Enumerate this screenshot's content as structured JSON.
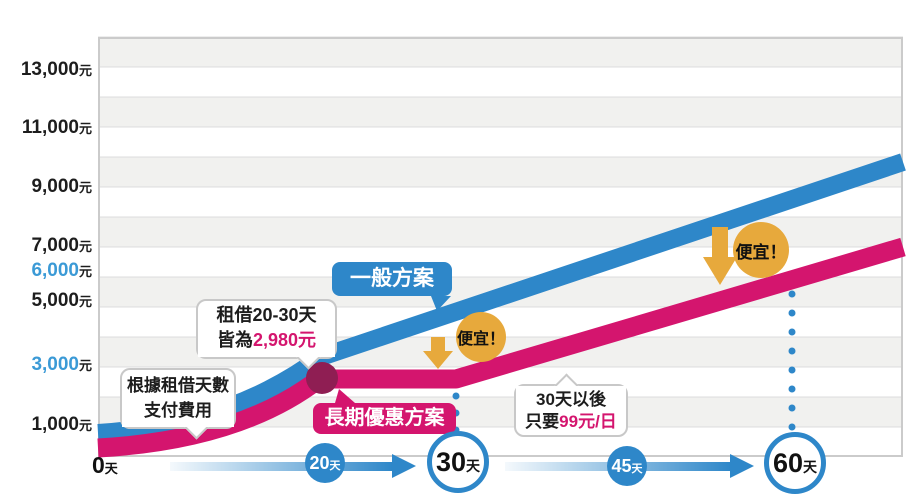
{
  "colors": {
    "blue": "#2e87c9",
    "blue_axis_label": "#3b9ad6",
    "pink": "#d4156e",
    "junction_dot": "#8f1e53",
    "orange": "#e7a93c",
    "band_gray": "#f1f1ef",
    "grid_line": "#dcdcdc",
    "text": "#1d1d1d"
  },
  "chart_data": {
    "type": "line",
    "title": "",
    "x_axis": {
      "unit": "天",
      "ticks": [
        0,
        20,
        30,
        45,
        60
      ],
      "tick_labels": [
        "0天",
        "20天",
        "30天",
        "45天",
        "60天"
      ]
    },
    "y_axis": {
      "unit": "元",
      "tick_labels": [
        "13,000元",
        "11,000元",
        "9,000元",
        "7,000元",
        "6,000元",
        "5,000元",
        "3,000元",
        "1,000元"
      ],
      "highlighted_tick_labels": [
        "6,000元",
        "3,000元"
      ],
      "range": [
        0,
        14000
      ],
      "gridline_every_yuan": 1000,
      "banded_background": true
    },
    "series": [
      {
        "name": "一般方案",
        "color": "#2e87c9",
        "points": [
          {
            "day": 0,
            "yuan": 600
          },
          {
            "day": 20,
            "yuan": 3300
          },
          {
            "day": 30,
            "yuan": 4850
          },
          {
            "day": 60,
            "yuan": 8400
          }
        ],
        "values_estimated_from_pixels": true
      },
      {
        "name": "長期優惠方案",
        "color": "#d4156e",
        "points": [
          {
            "day": 0,
            "yuan": 300
          },
          {
            "day": 20,
            "yuan": 2980
          },
          {
            "day": 30,
            "yuan": 2980
          },
          {
            "day": 60,
            "yuan": 5950
          }
        ],
        "pricing_notes": [
          "租借20-30天皆為2,980元",
          "30天以後只要99元/日"
        ]
      }
    ],
    "annotations": [
      "根據租借天數支付費用",
      "租借20-30天皆為2,980元",
      "30天以後只要99元/日",
      "便宜！",
      "便宜！"
    ],
    "legend_position": "inline-badges"
  },
  "y_labels": [
    {
      "num": "13,000",
      "unit": "元"
    },
    {
      "num": "11,000",
      "unit": "元"
    },
    {
      "num": "9,000",
      "unit": "元"
    },
    {
      "num": "7,000",
      "unit": "元"
    },
    {
      "num": "6,000",
      "unit": "元"
    },
    {
      "num": "5,000",
      "unit": "元"
    },
    {
      "num": "3,000",
      "unit": "元"
    },
    {
      "num": "1,000",
      "unit": "元"
    }
  ],
  "badges": {
    "general": "一般方案",
    "longterm": "長期優惠方案"
  },
  "bubbles": {
    "base": {
      "line1": "根據租借天數",
      "line2": "支付費用"
    },
    "rent": {
      "line1": "租借20-30天",
      "line2_prefix": "皆為",
      "line2_value": "2,980元"
    },
    "after30": {
      "line1": "30天以後",
      "line2_prefix": "只要",
      "line2_value": "99元/日"
    }
  },
  "cheap_label": "便宜！",
  "x_ticks": {
    "t0": {
      "num": "0",
      "unit": "天"
    },
    "t20": {
      "num": "20",
      "unit": "天"
    },
    "t30": {
      "num": "30",
      "unit": "天"
    },
    "t45": {
      "num": "45",
      "unit": "天"
    },
    "t60": {
      "num": "60",
      "unit": "天"
    }
  }
}
